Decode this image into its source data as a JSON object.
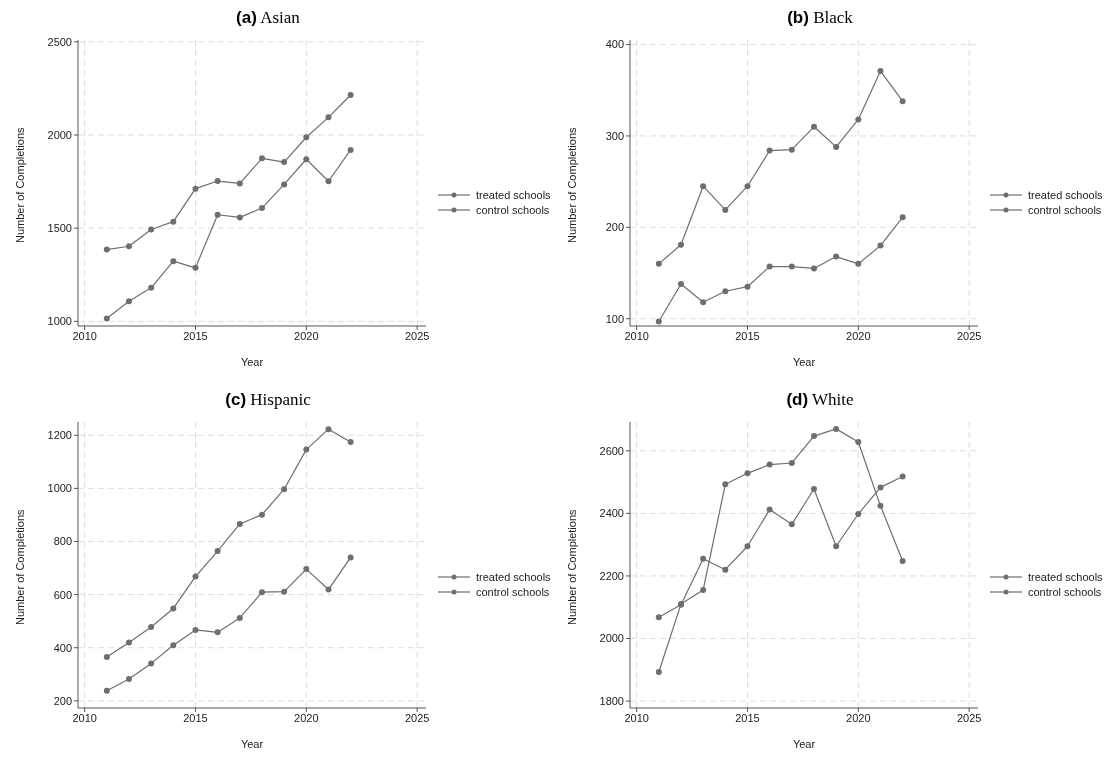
{
  "chart_data": [
    {
      "type": "line",
      "title": "(a) Asian",
      "xlabel": "Year",
      "ylabel": "Number of Completions",
      "x": [
        2011,
        2012,
        2013,
        2014,
        2015,
        2016,
        2017,
        2018,
        2019,
        2020,
        2021,
        2022
      ],
      "xlim": [
        2009.7,
        2025.4
      ],
      "xticks": [
        2010,
        2015,
        2020,
        2025
      ],
      "ylim": [
        975,
        2510
      ],
      "yticks": [
        1000,
        1500,
        2000,
        2500
      ],
      "grid": true,
      "legend": "right",
      "marker": "circle",
      "line_style": "solid",
      "series": [
        {
          "name": "treated schools",
          "color": "#6e6e6e",
          "values": [
            1385,
            1403,
            1493,
            1535,
            1712,
            1753,
            1740,
            1875,
            1855,
            1988,
            2095,
            2215
          ]
        },
        {
          "name": "control schools",
          "color": "#6e6e6e",
          "values": [
            1015,
            1108,
            1180,
            1323,
            1287,
            1572,
            1558,
            1608,
            1735,
            1870,
            1752,
            1920
          ]
        }
      ]
    },
    {
      "type": "line",
      "title": "(b) Black",
      "xlabel": "Year",
      "ylabel": "Number of Completions",
      "x": [
        2011,
        2012,
        2013,
        2014,
        2015,
        2016,
        2017,
        2018,
        2019,
        2020,
        2021,
        2022
      ],
      "xlim": [
        2009.7,
        2025.4
      ],
      "xticks": [
        2010,
        2015,
        2020,
        2025
      ],
      "ylim": [
        92,
        405
      ],
      "yticks": [
        100,
        200,
        300,
        400
      ],
      "grid": true,
      "legend": "right",
      "marker": "circle",
      "line_style": "solid",
      "series": [
        {
          "name": "treated schools",
          "color": "#6e6e6e",
          "values": [
            160,
            181,
            245,
            219,
            245,
            284,
            285,
            310,
            288,
            318,
            371,
            338
          ]
        },
        {
          "name": "control schools",
          "color": "#6e6e6e",
          "values": [
            97,
            138,
            118,
            130,
            135,
            157,
            157,
            155,
            168,
            160,
            180,
            211
          ]
        }
      ]
    },
    {
      "type": "line",
      "title": "(c) Hispanic",
      "xlabel": "Year",
      "ylabel": "Number of Completions",
      "x": [
        2011,
        2012,
        2013,
        2014,
        2015,
        2016,
        2017,
        2018,
        2019,
        2020,
        2021,
        2022
      ],
      "xlim": [
        2009.7,
        2025.4
      ],
      "xticks": [
        2010,
        2015,
        2020,
        2025
      ],
      "ylim": [
        173,
        1250
      ],
      "yticks": [
        200,
        400,
        600,
        800,
        1000,
        1200
      ],
      "grid": true,
      "legend": "right",
      "marker": "circle",
      "line_style": "solid",
      "series": [
        {
          "name": "treated schools",
          "color": "#6e6e6e",
          "values": [
            365,
            420,
            478,
            548,
            668,
            764,
            866,
            901,
            997,
            1146,
            1223,
            1175
          ]
        },
        {
          "name": "control schools",
          "color": "#6e6e6e",
          "values": [
            238,
            282,
            341,
            409,
            467,
            458,
            512,
            609,
            611,
            696,
            619,
            740
          ]
        }
      ]
    },
    {
      "type": "line",
      "title": "(d) White",
      "xlabel": "Year",
      "ylabel": "Number of Completions",
      "x": [
        2011,
        2012,
        2013,
        2014,
        2015,
        2016,
        2017,
        2018,
        2019,
        2020,
        2021,
        2022
      ],
      "xlim": [
        2009.7,
        2025.4
      ],
      "xticks": [
        2010,
        2015,
        2020,
        2025
      ],
      "ylim": [
        1778,
        2692
      ],
      "yticks": [
        1800,
        2000,
        2200,
        2400,
        2600
      ],
      "grid": true,
      "legend": "right",
      "marker": "circle",
      "line_style": "solid",
      "series": [
        {
          "name": "treated schools",
          "color": "#6e6e6e",
          "values": [
            1893,
            2110,
            2155,
            2493,
            2528,
            2556,
            2561,
            2647,
            2670,
            2628,
            2424,
            2248
          ]
        },
        {
          "name": "control schools",
          "color": "#6e6e6e",
          "values": [
            2068,
            2108,
            2255,
            2220,
            2295,
            2412,
            2365,
            2478,
            2295,
            2398,
            2483,
            2518
          ]
        }
      ]
    }
  ]
}
